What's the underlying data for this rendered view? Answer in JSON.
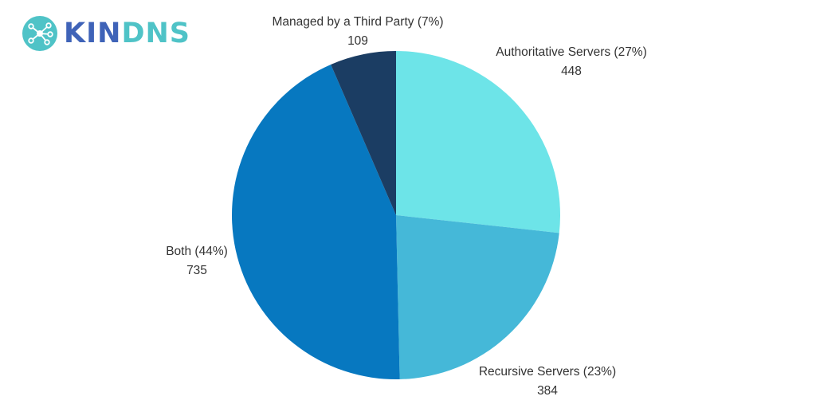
{
  "logo": {
    "brand_part1": "KIN",
    "brand_part2": "DNS",
    "icon": "network-nodes-icon",
    "colors": {
      "part1": "#3f63b8",
      "part2": "#4fc3c7",
      "icon_bg": "#4fc3c7"
    }
  },
  "chart_data": {
    "type": "pie",
    "title": "",
    "start_angle_deg": 0,
    "direction": "clockwise",
    "slices": [
      {
        "name": "Authoritative Servers",
        "label": "Authoritative Servers (27%)",
        "value": 448,
        "value_label": "448",
        "color": "#6de4e8"
      },
      {
        "name": "Recursive Servers",
        "label": "Recursive Servers (23%)",
        "value": 384,
        "value_label": "384",
        "color": "#45b8d8"
      },
      {
        "name": "Both",
        "label": "Both (44%)",
        "value": 735,
        "value_label": "735",
        "color": "#0778c0"
      },
      {
        "name": "Managed by a Third Party",
        "label": "Managed by a Third Party (7%)",
        "value": 109,
        "value_label": "109",
        "color": "#1b3d63"
      }
    ]
  }
}
